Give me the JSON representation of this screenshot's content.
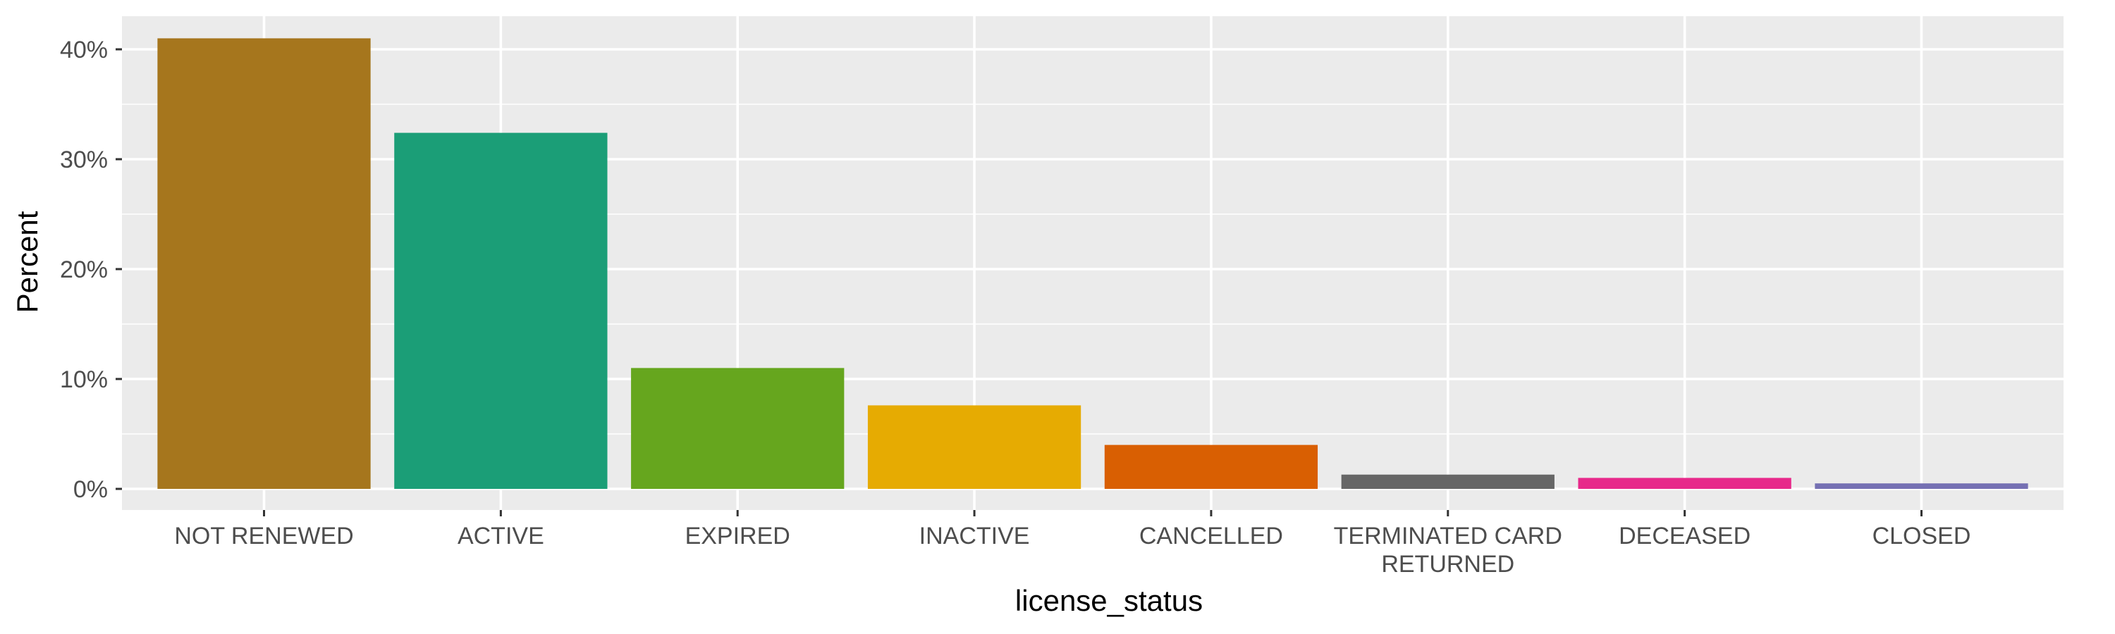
{
  "chart_data": {
    "type": "bar",
    "xlabel": "license_status",
    "ylabel": "Percent",
    "ylim": [
      0,
      43
    ],
    "y_ticks": [
      0,
      10,
      20,
      30,
      40
    ],
    "y_tick_labels": [
      "0%",
      "10%",
      "20%",
      "30%",
      "40%"
    ],
    "grid": true,
    "legend": "none",
    "categories": [
      {
        "label": [
          "NOT RENEWED"
        ],
        "value": 41.0,
        "color": "#A6761D"
      },
      {
        "label": [
          "ACTIVE"
        ],
        "value": 32.4,
        "color": "#1B9E77"
      },
      {
        "label": [
          "EXPIRED"
        ],
        "value": 11.0,
        "color": "#66A61E"
      },
      {
        "label": [
          "INACTIVE"
        ],
        "value": 7.6,
        "color": "#E6AB02"
      },
      {
        "label": [
          "CANCELLED"
        ],
        "value": 4.0,
        "color": "#D95F02"
      },
      {
        "label": [
          "TERMINATED CARD",
          "RETURNED"
        ],
        "value": 1.3,
        "color": "#666666"
      },
      {
        "label": [
          "DECEASED"
        ],
        "value": 1.0,
        "color": "#E7298A"
      },
      {
        "label": [
          "CLOSED"
        ],
        "value": 0.5,
        "color": "#7570B3"
      }
    ]
  },
  "colors": {
    "panel_background": "#EBEBEB",
    "grid_line": "#FFFFFF",
    "tick_text": "#4D4D4D",
    "tick_mark": "#333333"
  }
}
